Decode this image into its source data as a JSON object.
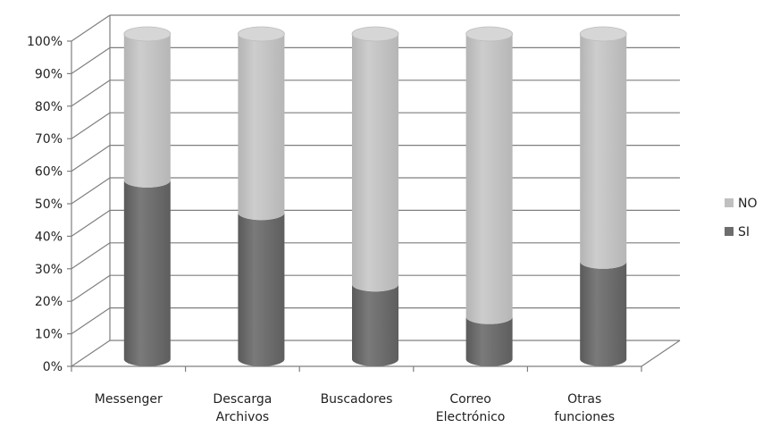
{
  "chart_data": {
    "type": "bar",
    "stacked": true,
    "percent_stacked": true,
    "categories": [
      [
        "Messenger"
      ],
      [
        "Descarga",
        "Archivos"
      ],
      [
        "Buscadores"
      ],
      [
        "Correo",
        "Electrónico"
      ],
      [
        "Otras",
        "funciones"
      ]
    ],
    "series": [
      {
        "name": "SI",
        "values": [
          55,
          45,
          23,
          13,
          30
        ],
        "color": "#6d6d6d"
      },
      {
        "name": "NO",
        "values": [
          45,
          55,
          77,
          87,
          70
        ],
        "color": "#c0c0c0"
      }
    ],
    "yticks": [
      "0%",
      "10%",
      "20%",
      "30%",
      "40%",
      "50%",
      "60%",
      "70%",
      "80%",
      "90%",
      "100%"
    ],
    "ylim": [
      0,
      100
    ],
    "grid": true,
    "legend_position": "right",
    "legend_order": [
      "NO",
      "SI"
    ],
    "title": "",
    "xlabel": "",
    "ylabel": ""
  }
}
